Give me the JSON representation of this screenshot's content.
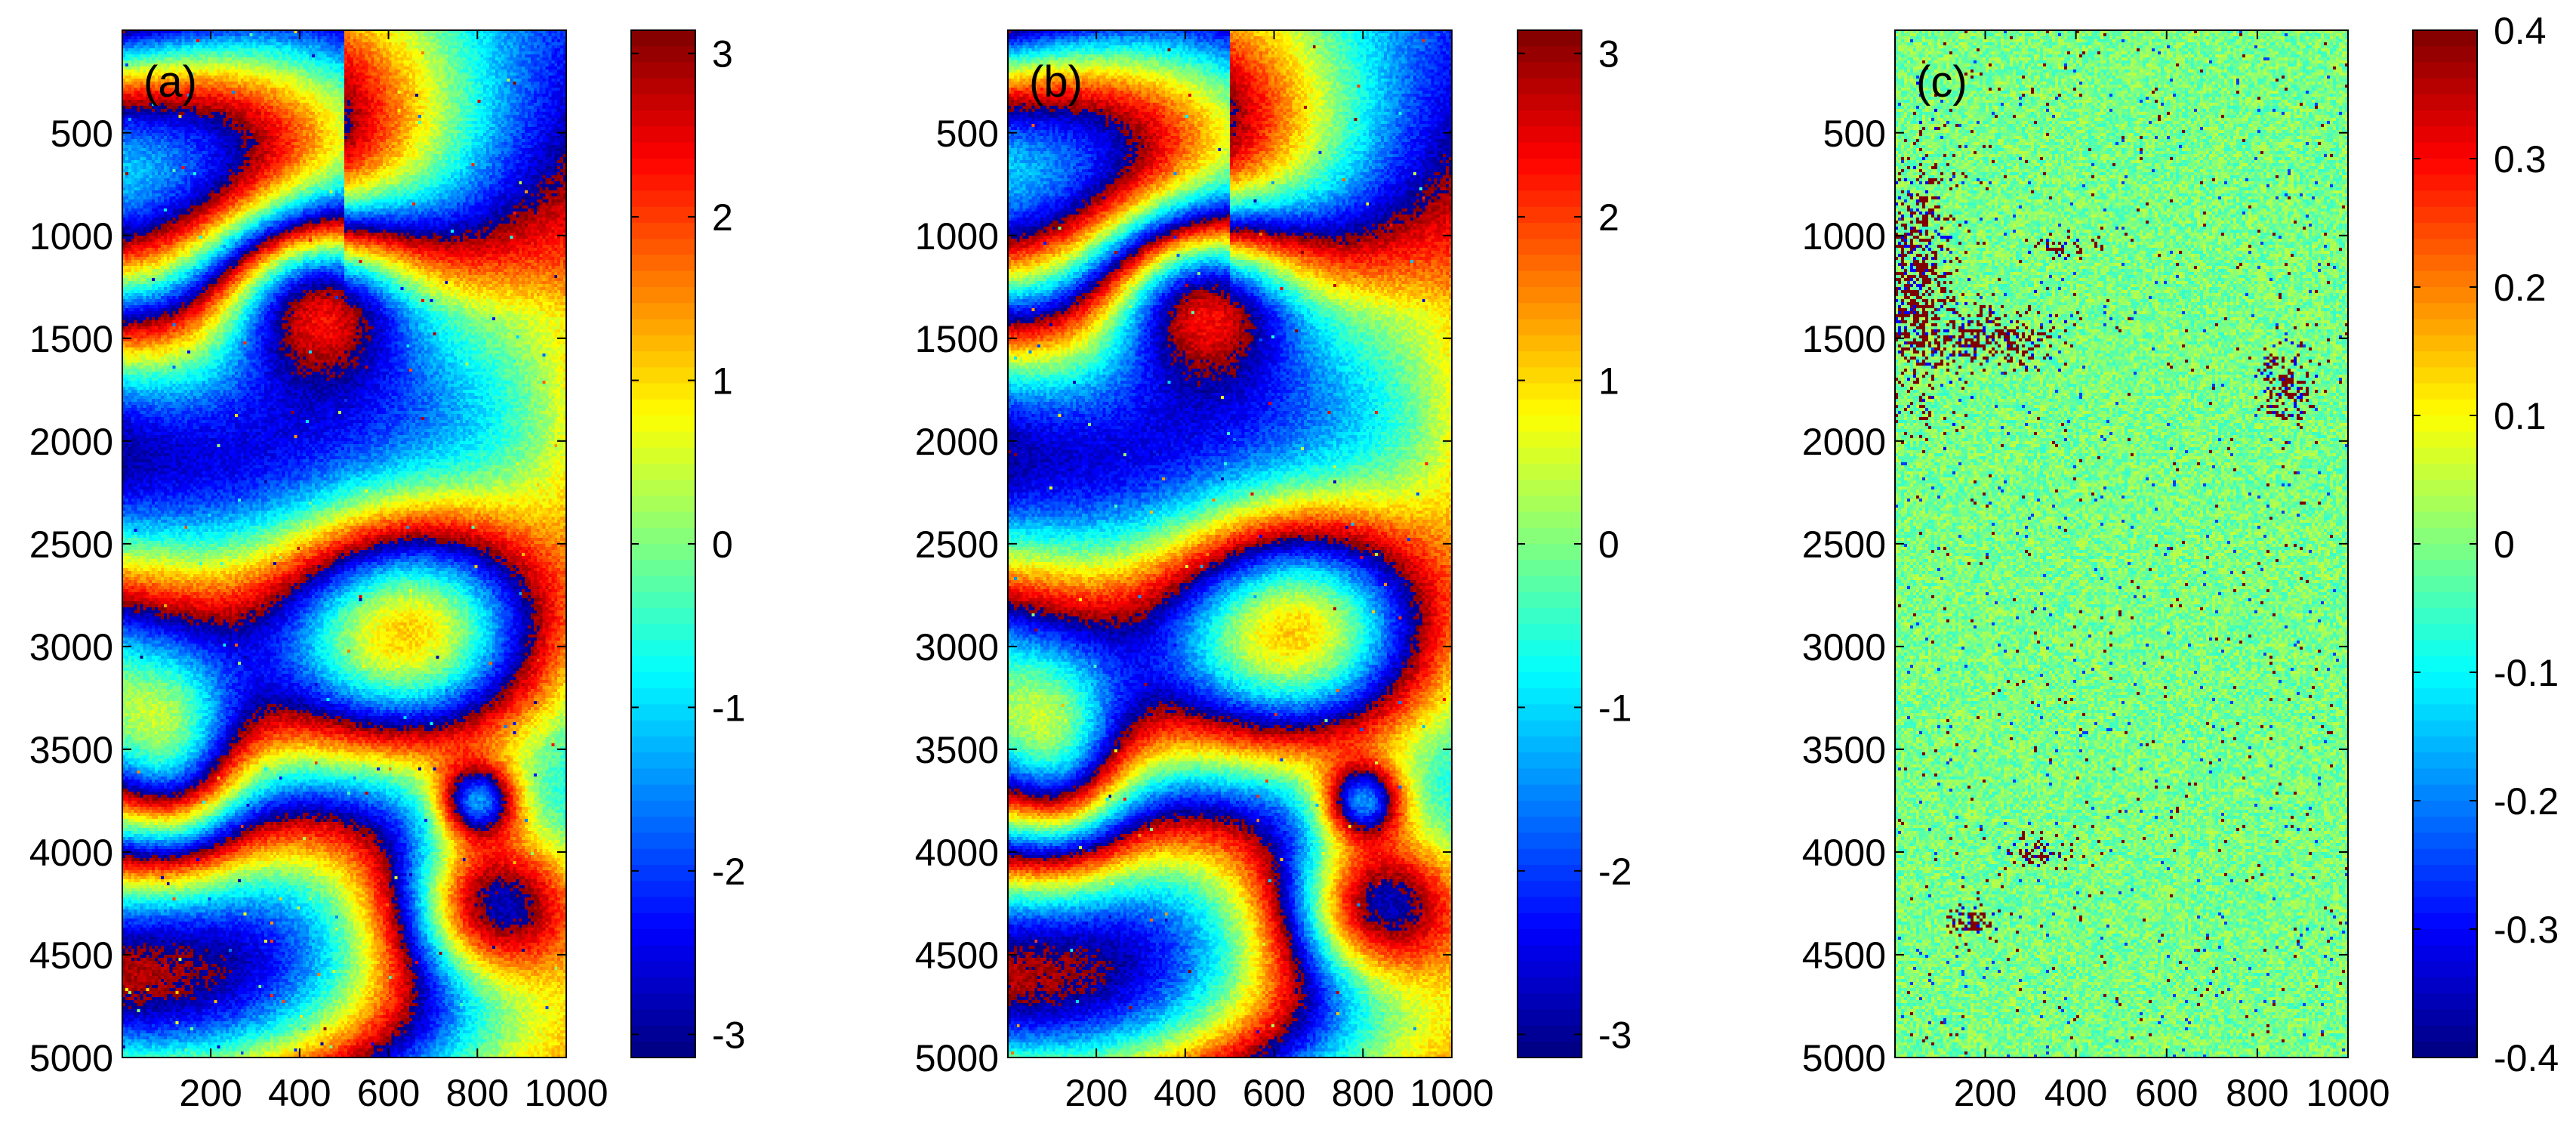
{
  "chart_data": [
    {
      "type": "heatmap",
      "panel_label": "(a)",
      "description": "Wrapped phase map",
      "colormap": "jet",
      "x_ticks": [
        200,
        400,
        600,
        800,
        1000
      ],
      "y_ticks": [
        500,
        1000,
        1500,
        2000,
        2500,
        3000,
        3500,
        4000,
        4500,
        5000
      ],
      "xlim": [
        1,
        1000
      ],
      "ylim": [
        1,
        5000
      ],
      "y_reversed": true,
      "colorbar": {
        "min": -3.1416,
        "max": 3.1416,
        "ticks": [
          3,
          2,
          1,
          0,
          -1,
          -2,
          -3
        ]
      },
      "kind": "phase"
    },
    {
      "type": "heatmap",
      "panel_label": "(b)",
      "description": "Wrapped phase map (reconstruction)",
      "colormap": "jet",
      "x_ticks": [
        200,
        400,
        600,
        800,
        1000
      ],
      "y_ticks": [
        500,
        1000,
        1500,
        2000,
        2500,
        3000,
        3500,
        4000,
        4500,
        5000
      ],
      "xlim": [
        1,
        1000
      ],
      "ylim": [
        1,
        5000
      ],
      "y_reversed": true,
      "colorbar": {
        "min": -3.1416,
        "max": 3.1416,
        "ticks": [
          3,
          2,
          1,
          0,
          -1,
          -2,
          -3
        ]
      },
      "kind": "phase"
    },
    {
      "type": "heatmap",
      "panel_label": "(c)",
      "description": "Difference map",
      "colormap": "jet",
      "x_ticks": [
        200,
        400,
        600,
        800,
        1000
      ],
      "y_ticks": [
        500,
        1000,
        1500,
        2000,
        2500,
        3000,
        3500,
        4000,
        4500,
        5000
      ],
      "xlim": [
        1,
        1000
      ],
      "ylim": [
        1,
        5000
      ],
      "y_reversed": true,
      "colorbar": {
        "min": -0.4,
        "max": 0.4,
        "ticks": [
          0.4,
          0.3,
          0.2,
          0.1,
          0,
          -0.1,
          -0.2,
          -0.3,
          -0.4
        ]
      },
      "kind": "diff"
    }
  ]
}
